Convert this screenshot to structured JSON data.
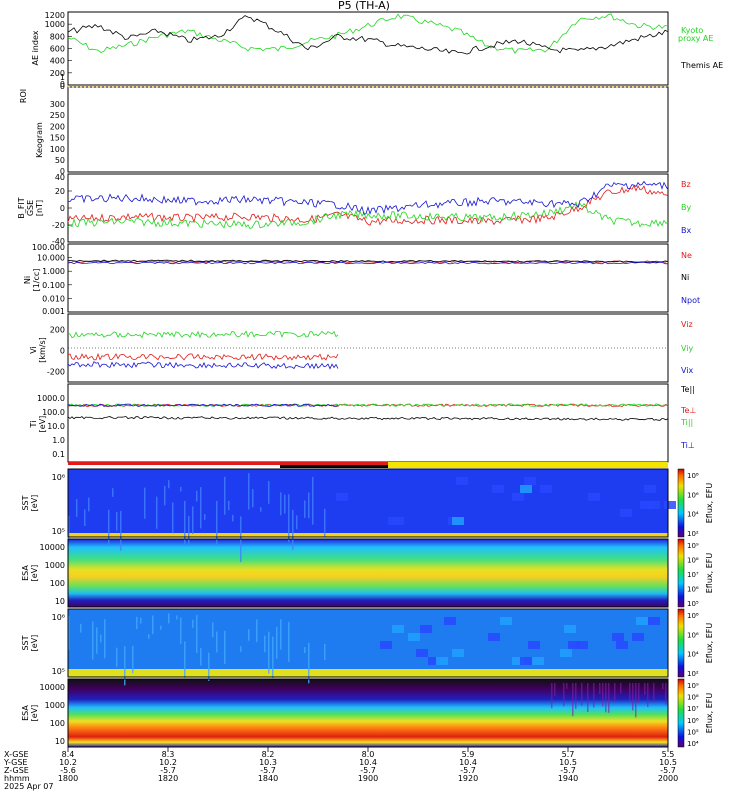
{
  "title": "P5 (TH-A)",
  "colors": {
    "red": "#e21a1a",
    "green": "#22d622",
    "blue": "#1414d2",
    "black": "#000000",
    "orange": "#e8a020",
    "yellow": "#f5e400"
  },
  "chart_data": [
    {
      "type": "line",
      "panel": "ae-index",
      "ylabel": "AE index",
      "yticks": [
        "1200",
        "1000",
        "800",
        "600",
        "400",
        "200",
        "0"
      ],
      "ylim": [
        -100,
        1250
      ],
      "series": [
        {
          "name": "Kyoto proxy AE",
          "color": "green",
          "x": [
            0,
            0.05,
            0.1,
            0.15,
            0.2,
            0.25,
            0.3,
            0.35,
            0.4,
            0.45,
            0.5,
            0.55,
            0.6,
            0.65,
            0.7,
            0.75,
            0.8,
            0.85,
            0.9,
            0.95,
            1
          ],
          "values": [
            780,
            520,
            640,
            800,
            900,
            740,
            580,
            560,
            700,
            820,
            1000,
            1180,
            1050,
            900,
            620,
            520,
            560,
            1120,
            1190,
            1000,
            960
          ]
        },
        {
          "name": "Themis AE",
          "color": "black",
          "x": [
            0,
            0.05,
            0.1,
            0.15,
            0.2,
            0.25,
            0.3,
            0.35,
            0.4,
            0.45,
            0.5,
            0.55,
            0.6,
            0.65,
            0.7,
            0.75,
            0.8,
            0.85,
            0.9,
            0.95,
            1
          ],
          "values": [
            880,
            1000,
            760,
            900,
            720,
            800,
            1180,
            900,
            560,
            800,
            740,
            620,
            560,
            480,
            620,
            720,
            560,
            520,
            620,
            760,
            880
          ]
        }
      ],
      "labels": [
        "Kyoto",
        "proxy AE",
        "Themis AE"
      ]
    },
    {
      "type": "line",
      "panel": "roi",
      "ylabel": "ROI",
      "yticks": [
        "1",
        "0"
      ]
    },
    {
      "type": "heatmap",
      "panel": "keogram",
      "ylabel": "Keogram",
      "yticks": [
        "300",
        "250",
        "200",
        "150",
        "100",
        "50",
        "0"
      ]
    },
    {
      "type": "line",
      "panel": "b-field",
      "ylabel": [
        "B_FIT",
        "GSE",
        "[nT]"
      ],
      "yticks": [
        "40",
        "20",
        "0",
        "-20",
        "-40"
      ],
      "ylim": [
        -40,
        40
      ],
      "series": [
        {
          "name": "Bz",
          "color": "red",
          "x": [
            0,
            0.1,
            0.2,
            0.3,
            0.4,
            0.45,
            0.5,
            0.6,
            0.7,
            0.8,
            0.85,
            0.9,
            0.95,
            1
          ],
          "values": [
            -14,
            -10,
            -12,
            -10,
            -14,
            -8,
            -16,
            -14,
            -16,
            -12,
            0,
            18,
            24,
            14
          ]
        },
        {
          "name": "By",
          "color": "green",
          "x": [
            0,
            0.1,
            0.2,
            0.3,
            0.4,
            0.45,
            0.5,
            0.6,
            0.7,
            0.8,
            0.85,
            0.9,
            0.95,
            1
          ],
          "values": [
            -18,
            -16,
            -18,
            -20,
            -16,
            -8,
            -8,
            -10,
            -12,
            -6,
            4,
            -14,
            -18,
            -16
          ]
        },
        {
          "name": "Bx",
          "color": "blue",
          "x": [
            0,
            0.1,
            0.2,
            0.3,
            0.4,
            0.45,
            0.5,
            0.6,
            0.7,
            0.8,
            0.85,
            0.9,
            0.95,
            1
          ],
          "values": [
            10,
            12,
            8,
            10,
            6,
            4,
            -4,
            4,
            8,
            6,
            4,
            26,
            28,
            26
          ]
        }
      ]
    },
    {
      "type": "line",
      "panel": "density",
      "ylabel": [
        "Ni",
        "[1/cc]"
      ],
      "yticks": [
        "100.000",
        "10.000",
        "1.000",
        "0.100",
        "0.010",
        "0.001"
      ],
      "log_scale": true,
      "series": [
        {
          "name": "Ne",
          "color": "red",
          "x": [
            0,
            1
          ],
          "values": [
            5,
            5
          ]
        },
        {
          "name": "Ni",
          "color": "black",
          "x": [
            0,
            1
          ],
          "values": [
            6,
            5
          ]
        },
        {
          "name": "Npot",
          "color": "blue",
          "x": [
            0,
            1
          ],
          "values": [
            4,
            4
          ]
        }
      ]
    },
    {
      "type": "line",
      "panel": "velocity",
      "ylabel": [
        "Vi",
        "[km/s]"
      ],
      "yticks": [
        "200",
        "0",
        "-200"
      ],
      "ylim": [
        -300,
        350
      ],
      "series": [
        {
          "name": "Viz",
          "color": "red",
          "x": [
            0,
            0.45
          ],
          "values": [
            -60,
            -60
          ]
        },
        {
          "name": "Viy",
          "color": "green",
          "x": [
            0,
            0.45
          ],
          "values": [
            150,
            160
          ]
        },
        {
          "name": "Vix",
          "color": "blue",
          "x": [
            0,
            0.45
          ],
          "values": [
            -130,
            -150
          ]
        }
      ]
    },
    {
      "type": "line",
      "panel": "temperature",
      "ylabel": [
        "Ti",
        "[eV]"
      ],
      "yticks": [
        "1000.0",
        "100.0",
        "10.0",
        "1.0",
        "0.1"
      ],
      "log_scale": true,
      "series": [
        {
          "name": "Te||",
          "color": "black",
          "x": [
            0,
            1
          ],
          "values": [
            40,
            30
          ]
        },
        {
          "name": "Te⊥",
          "color": "red",
          "x": [
            0,
            1
          ],
          "values": [
            300,
            300
          ]
        },
        {
          "name": "Ti||",
          "color": "green",
          "x": [
            0,
            1
          ],
          "values": [
            300,
            320
          ]
        },
        {
          "name": "Ti⊥",
          "color": "blue",
          "x": [
            0,
            0.45
          ],
          "values": [
            300,
            300
          ]
        }
      ]
    },
    {
      "type": "heatmap",
      "panel": "sst-1",
      "ylabel": [
        "SST",
        "[eV]"
      ],
      "yticks": [
        "10⁶",
        "10⁵"
      ],
      "colorbar": {
        "label": "Eflux, EFU",
        "ticks": [
          "10⁸",
          "10⁶",
          "10⁴",
          "10²"
        ]
      }
    },
    {
      "type": "heatmap",
      "panel": "esa-1",
      "ylabel": [
        "ESA",
        "[eV]"
      ],
      "yticks": [
        "10000",
        "1000",
        "100",
        "10"
      ],
      "colorbar": {
        "label": "Eflux, EFU",
        "ticks": [
          "10⁹",
          "10⁸",
          "10⁷",
          "10⁶",
          "10⁵"
        ]
      }
    },
    {
      "type": "heatmap",
      "panel": "sst-2",
      "ylabel": [
        "SST",
        "[eV]"
      ],
      "yticks": [
        "10⁶",
        "10⁵"
      ],
      "colorbar": {
        "label": "Eflux, EFU",
        "ticks": [
          "10⁸",
          "10⁶",
          "10⁴",
          "10²"
        ]
      }
    },
    {
      "type": "heatmap",
      "panel": "esa-2",
      "ylabel": [
        "ESA",
        "[eV]"
      ],
      "yticks": [
        "10000",
        "1000",
        "100",
        "10"
      ],
      "colorbar": {
        "label": "Eflux, EFU",
        "ticks": [
          "10⁹",
          "10⁸",
          "10⁷",
          "10⁶",
          "10⁵",
          "10⁴"
        ]
      }
    }
  ],
  "x_axis": {
    "row_labels": [
      "X-GSE",
      "Y-GSE",
      "Z-GSE",
      "hhmm",
      "2025 Apr 07"
    ],
    "ticks": [
      {
        "x": "8.4",
        "y": "10.2",
        "z": "-5.6",
        "t": "1800"
      },
      {
        "x": "8.3",
        "y": "10.2",
        "z": "-5.7",
        "t": "1820"
      },
      {
        "x": "8.2",
        "y": "10.3",
        "z": "-5.7",
        "t": "1840"
      },
      {
        "x": "8.0",
        "y": "10.4",
        "z": "-5.7",
        "t": "1900"
      },
      {
        "x": "5.9",
        "y": "10.4",
        "z": "-5.7",
        "t": "1920"
      },
      {
        "x": "5.7",
        "y": "10.5",
        "z": "-5.7",
        "t": "1940"
      },
      {
        "x": "5.5",
        "y": "10.5",
        "z": "-5.7",
        "t": "2000"
      }
    ]
  }
}
